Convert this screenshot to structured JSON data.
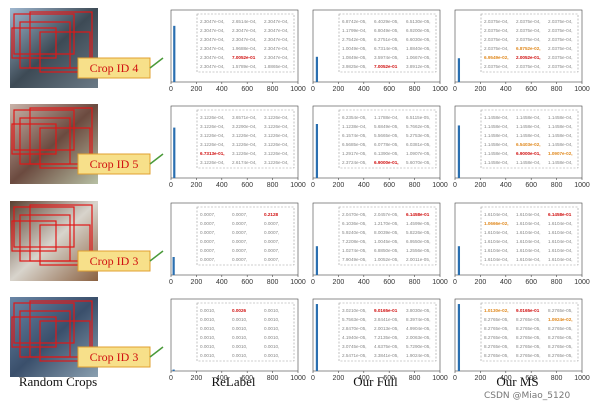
{
  "left_title": "Random Crops",
  "collapse": "collapse",
  "watermark": "CSDN @Miao_5120",
  "columns": [
    "ReLabel",
    "Our Full",
    "Our MS"
  ],
  "xlim": [
    0,
    1000
  ],
  "ylim": [
    0,
    1
  ],
  "xticks": [
    0,
    200,
    400,
    600,
    800,
    1000
  ],
  "rows": [
    {
      "crop_label": "Crop ID 4",
      "panels": [
        {
          "bar": {
            "x": 25,
            "height": 0.78
          },
          "lines": [
            [
              "2.3047e-04,",
              "2.6514e-04,",
              "2.3047e-04,"
            ],
            [
              "2.3047e-04,",
              "2.3047e-04,",
              "2.3047e-04,"
            ],
            [
              "2.3047e-04,",
              "2.3047e-04,",
              "2.3047e-04,"
            ],
            [
              "2.3047e-04,",
              "1.9688e-04,",
              "2.3047e-04,"
            ],
            [
              "2.3047e-04,",
              {
                "text": "7.0052e-01",
                "color": "#d01010"
              },
              "2.3047e-04,"
            ],
            [
              "2.3047e-04,",
              "1.5789e-04,",
              "1.8865e-04,"
            ]
          ]
        },
        {
          "bar": {
            "x": 30,
            "height": 0.35
          },
          "lines": [
            [
              "6.8742e-05,",
              "6.4029e-05,",
              "6.5130e-05,"
            ],
            [
              "1.1799e-04,",
              "6.8049e-05,",
              "6.9200e-05,"
            ],
            [
              "2.7542e-05,",
              "6.2751e-05,",
              "6.6030e-05,"
            ],
            [
              "1.0049e-05,",
              "6.7314e-05,",
              "1.8840e-05,"
            ],
            [
              "1.0849e-05,",
              "3.5974e-05,",
              "1.0667e-05,"
            ],
            [
              "3.9825e-05,",
              {
                "text": "7.0052e-01",
                "color": "#d01010"
              },
              "3.8912e-05,"
            ]
          ]
        },
        {
          "bar": {
            "x": 30,
            "height": 0.33
          },
          "lines": [
            [
              "2.0375e-04,",
              "2.0375e-04,",
              "2.0375e-04,"
            ],
            [
              "2.0375e-04,",
              "2.0375e-04,",
              "2.0375e-04,"
            ],
            [
              "2.0375e-04,",
              "2.0375e-04,",
              "2.0375e-04,"
            ],
            [
              "2.0375e-04,",
              {
                "text": "6.8752e-02,",
                "color": "#e08a20"
              },
              "2.0375e-04,"
            ],
            [
              {
                "text": "6.9549e-02,",
                "color": "#e08a20"
              },
              {
                "text": "2.0052e-01,",
                "color": "#d01010"
              },
              "2.0375e-04,"
            ],
            [
              "2.0375e-04,",
              "2.0375e-04,",
              "2.0375e-04,"
            ]
          ]
        }
      ]
    },
    {
      "crop_label": "Crop ID 5",
      "panels": [
        {
          "bar": {
            "x": 25,
            "height": 0.7
          },
          "lines": [
            [
              "3.1226e-04,",
              "3.6571e-04,",
              "3.1226e-04,"
            ],
            [
              "3.1226e-04,",
              "3.2290e-04,",
              "3.1226e-04,"
            ],
            [
              "3.1226e-04,",
              "3.1226e-04,",
              "3.1226e-04,"
            ],
            [
              "3.1226e-04,",
              "3.1226e-04,",
              "3.1226e-04,"
            ],
            [
              {
                "text": "6.7313e-01,",
                "color": "#d01010"
              },
              "3.1226e-04,",
              "3.1226e-04,"
            ],
            [
              "3.1226e-04,",
              "2.6174e-04,",
              "3.1226e-04,"
            ]
          ]
        },
        {
          "bar": {
            "x": 30,
            "height": 0.75
          },
          "lines": [
            [
              "6.2354e-05,",
              "1.1788e-04,",
              "6.5115e-05,"
            ],
            [
              "1.1238e-04,",
              "5.6849e-05,",
              "5.7662e-05,"
            ],
            [
              "6.1574e-05,",
              "5.5665e-05,",
              "5.2753e-05,"
            ],
            [
              "6.5685e-05,",
              "6.0778e-05,",
              "6.0381e-05,"
            ],
            [
              "1.2917e-05,",
              "6.1390e-05,",
              "1.0907e-05,"
            ],
            [
              "2.3724e-05,",
              {
                "text": "6.9000e-01,",
                "color": "#d01010"
              },
              "5.6070e-05,"
            ]
          ]
        },
        {
          "bar": {
            "x": 30,
            "height": 0.73
          },
          "lines": [
            [
              "1.1458e-04,",
              "1.1458e-04,",
              "1.1458e-04,"
            ],
            [
              "1.1458e-04,",
              "1.1458e-04,",
              "1.1458e-04,"
            ],
            [
              "1.1458e-04,",
              "1.1458e-04,",
              "1.1458e-04,"
            ],
            [
              "1.1458e-04,",
              {
                "text": "6.5403e-02,",
                "color": "#e08a20"
              },
              "1.1458e-04,"
            ],
            [
              "1.1458e-04,",
              {
                "text": "6.9000e-01,",
                "color": "#d01010"
              },
              {
                "text": "1.0907e-02,",
                "color": "#e08a20"
              }
            ],
            [
              "1.1458e-04,",
              "1.1458e-04,",
              "1.1458e-04,"
            ]
          ]
        }
      ]
    },
    {
      "crop_label": "Crop ID 3",
      "panels": [
        {
          "bar": {
            "x": 20,
            "height": 0.25
          },
          "lines": [
            [
              "0.0007,",
              "0.0007,",
              {
                "text": "0.2128",
                "color": "#d01010"
              }
            ],
            [
              "0.0007,",
              "0.0007,",
              "0.0007,"
            ],
            [
              "0.0007,",
              "0.0007,",
              "0.0007,"
            ],
            [
              "0.0007,",
              "0.0007,",
              "0.0007,"
            ],
            [
              "0.0007,",
              "0.0007,",
              "0.0007,"
            ],
            [
              "0.0007,",
              "0.0007,",
              "0.0007,"
            ]
          ]
        },
        {
          "bar": {
            "x": 30,
            "height": 0.4
          },
          "lines": [
            [
              "2.0470e-05,",
              "2.0457e-05,",
              {
                "text": "6.1458e-01",
                "color": "#d01010"
              }
            ],
            [
              "6.1036e-05,",
              "1.2170e-05,",
              "1.4599e-05,"
            ],
            [
              "5.9240e-05,",
              "8.0039e-05,",
              "5.8226e-05,"
            ],
            [
              "7.2208e-05,",
              "1.0045e-05,",
              "6.9550e-05,"
            ],
            [
              "1.0274e-05,",
              "6.8850e-05,",
              "1.2556e-05,"
            ],
            [
              "7.9049e-05,",
              "1.0052e-05,",
              "2.0011e-05,"
            ]
          ]
        },
        {
          "bar": {
            "x": 30,
            "height": 0.4
          },
          "lines": [
            [
              "1.6104e-04,",
              "1.6104e-04,",
              {
                "text": "6.1458e-01",
                "color": "#d01010"
              }
            ],
            [
              {
                "text": "1.0666e-02,",
                "color": "#e08a20"
              },
              "1.6104e-04,",
              "1.6104e-04,"
            ],
            [
              "1.6104e-04,",
              "1.6104e-04,",
              "1.6104e-04,"
            ],
            [
              "1.6104e-04,",
              "1.6104e-04,",
              "1.6104e-04,"
            ],
            [
              "1.6104e-04,",
              "1.6104e-04,",
              "1.6104e-04,"
            ],
            [
              "1.6104e-04,",
              "1.6104e-04,",
              "1.6104e-04,"
            ]
          ]
        }
      ]
    },
    {
      "crop_label": "Crop ID 3",
      "panels": [
        {
          "bar": {
            "x": 20,
            "height": 0.02
          },
          "lines": [
            [
              "0.0010,",
              {
                "text": "0.0026",
                "color": "#d01010"
              },
              "0.0010,"
            ],
            [
              "0.0010,",
              "0.0010,",
              "0.0010,"
            ],
            [
              "0.0010,",
              "0.0010,",
              "0.0010,"
            ],
            [
              "0.0010,",
              "0.0010,",
              "0.0010,"
            ],
            [
              "0.0010,",
              "0.0010,",
              "0.0010,"
            ],
            [
              "0.0010,",
              "0.0010,",
              "0.0010,"
            ]
          ]
        },
        {
          "bar": {
            "x": 30,
            "height": 0.93
          },
          "lines": [
            [
              "3.0210e-05,",
              {
                "text": "9.0165e-01",
                "color": "#d01010"
              },
              "3.8030e-05,"
            ],
            [
              "5.7563e-05,",
              "3.8441e-05,",
              "8.3974e-05,"
            ],
            [
              "2.8470e-05,",
              "2.0013e-05,",
              "4.9904e-05,"
            ],
            [
              "4.1940e-05,",
              "7.2135e-05,",
              "2.0063e-05,"
            ],
            [
              "3.0745e-05,",
              "4.6375e-05,",
              "5.7290e-05,"
            ],
            [
              "2.5471e-05,",
              "3.3841e-05,",
              "1.9024e-05,"
            ]
          ]
        },
        {
          "bar": {
            "x": 30,
            "height": 0.93
          },
          "lines": [
            [
              {
                "text": "1.0130e-02,",
                "color": "#e08a20"
              },
              {
                "text": "9.0165e-01",
                "color": "#d01010"
              },
              "8.2765e-05,"
            ],
            [
              "8.2765e-05,",
              "8.2765e-05,",
              {
                "text": "1.0924e-02,",
                "color": "#e08a20"
              }
            ],
            [
              "8.2765e-05,",
              "8.2765e-05,",
              "8.2765e-05,"
            ],
            [
              "8.2765e-05,",
              "8.2765e-05,",
              "8.2765e-05,"
            ],
            [
              "8.2765e-05,",
              "8.2765e-05,",
              "8.2765e-05,"
            ],
            [
              "8.2765e-05,",
              "8.2765e-05,",
              "8.2765e-05,"
            ]
          ]
        }
      ]
    }
  ]
}
